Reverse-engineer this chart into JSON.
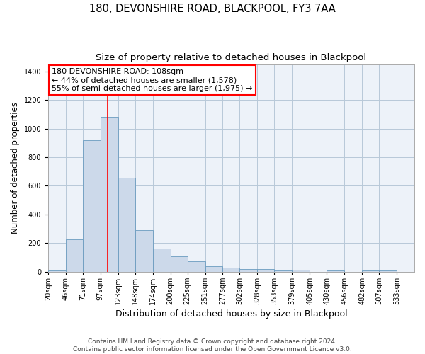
{
  "title_line1": "180, DEVONSHIRE ROAD, BLACKPOOL, FY3 7AA",
  "title_line2": "Size of property relative to detached houses in Blackpool",
  "xlabel": "Distribution of detached houses by size in Blackpool",
  "ylabel": "Number of detached properties",
  "bar_color": "#ccd9ea",
  "bar_edge_color": "#6a9bbf",
  "red_line_x": 108,
  "bin_edges": [
    20,
    46,
    71,
    97,
    123,
    148,
    174,
    200,
    225,
    251,
    277,
    302,
    328,
    353,
    379,
    405,
    430,
    456,
    482,
    507,
    533
  ],
  "bar_heights": [
    10,
    225,
    920,
    1080,
    655,
    290,
    160,
    108,
    70,
    40,
    28,
    20,
    18,
    10,
    12,
    0,
    8,
    0,
    8,
    0,
    8
  ],
  "ylim": [
    0,
    1450
  ],
  "yticks": [
    0,
    200,
    400,
    600,
    800,
    1000,
    1200,
    1400
  ],
  "xtick_labels": [
    "20sqm",
    "46sqm",
    "71sqm",
    "97sqm",
    "123sqm",
    "148sqm",
    "174sqm",
    "200sqm",
    "225sqm",
    "251sqm",
    "277sqm",
    "302sqm",
    "328sqm",
    "353sqm",
    "379sqm",
    "405sqm",
    "430sqm",
    "456sqm",
    "482sqm",
    "507sqm",
    "533sqm"
  ],
  "annotation_title": "180 DEVONSHIRE ROAD: 108sqm",
  "annotation_line2": "← 44% of detached houses are smaller (1,578)",
  "annotation_line3": "55% of semi-detached houses are larger (1,975) →",
  "footer_line1": "Contains HM Land Registry data © Crown copyright and database right 2024.",
  "footer_line2": "Contains public sector information licensed under the Open Government Licence v3.0.",
  "bg_color": "#edf2f9",
  "grid_color": "#b8c8d8",
  "title_fontsize": 10.5,
  "subtitle_fontsize": 9.5,
  "tick_fontsize": 7,
  "ylabel_fontsize": 8.5,
  "xlabel_fontsize": 9,
  "annotation_fontsize": 8,
  "footer_fontsize": 6.5
}
